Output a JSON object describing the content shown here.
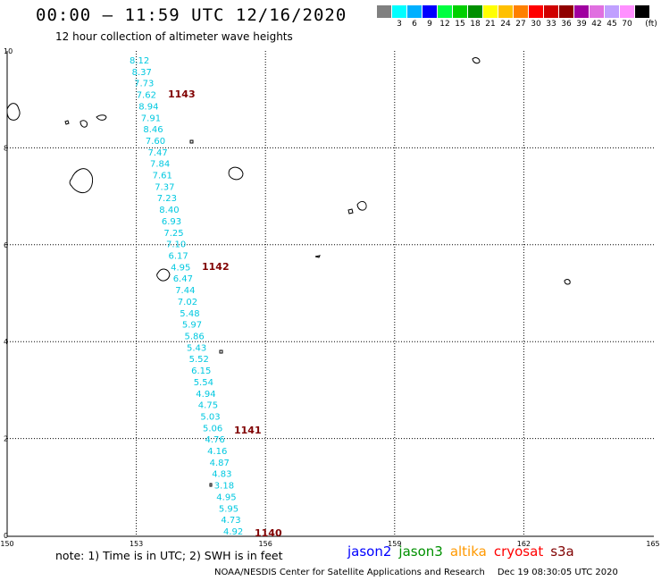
{
  "header": {
    "title": "00:00 – 11:59 UTC 12/16/2020",
    "subtitle": "12 hour collection of altimeter wave heights"
  },
  "colorbar": {
    "unit": "(ft)",
    "colors": [
      "#808080",
      "#00ffff",
      "#00b0ff",
      "#0000ff",
      "#00ff40",
      "#00d000",
      "#009000",
      "#ffff00",
      "#ffc000",
      "#ff8000",
      "#ff0000",
      "#d00000",
      "#900000",
      "#a000a0",
      "#e070e0",
      "#c0a0ff",
      "#ff90ff",
      "#000000"
    ],
    "labels": [
      "3",
      "6",
      "9",
      "12",
      "15",
      "18",
      "21",
      "24",
      "27",
      "30",
      "33",
      "36",
      "39",
      "42",
      "45",
      "70"
    ]
  },
  "map": {
    "x_ticks": [
      "150",
      "153",
      "156",
      "159",
      "162",
      "165"
    ],
    "y_ticks": [
      "10",
      "8",
      "6",
      "4",
      "2",
      "0"
    ],
    "swh_color": "#00c8e0",
    "pass_color": "#800000",
    "swh_values": [
      "8.12",
      "8.37",
      "7.73",
      "7.62",
      "8.94",
      "7.91",
      "8.46",
      "7.60",
      "7.47",
      "7.84",
      "7.61",
      "7.37",
      "7.23",
      "8.40",
      "6.93",
      "7.25",
      "7.10",
      "6.17",
      "4.95",
      "6.47",
      "7.44",
      "7.02",
      "5.48",
      "5.97",
      "5.86",
      "5.43",
      "5.52",
      "6.15",
      "5.54",
      "4.94",
      "4.75",
      "5.03",
      "5.06",
      "4.76",
      "4.16",
      "4.87",
      "4.83",
      "3.18",
      "4.95",
      "5.95",
      "4.73",
      "4.92"
    ],
    "pass_labels": [
      "1143",
      "1142",
      "1141",
      "1140"
    ]
  },
  "footer": {
    "note": "note:  1) Time is in UTC;  2) SWH is in feet",
    "legend": [
      {
        "name": "jason2",
        "color": "#0000ff"
      },
      {
        "name": "jason3",
        "color": "#009000"
      },
      {
        "name": "altika",
        "color": "#ff9900"
      },
      {
        "name": "cryosat",
        "color": "#ff0000"
      },
      {
        "name": "s3a",
        "color": "#800000"
      }
    ],
    "credit": "NOAA/NESDIS Center for Satellite Applications and Research",
    "timestamp": "Dec 19 08:30:05 UTC 2020"
  }
}
